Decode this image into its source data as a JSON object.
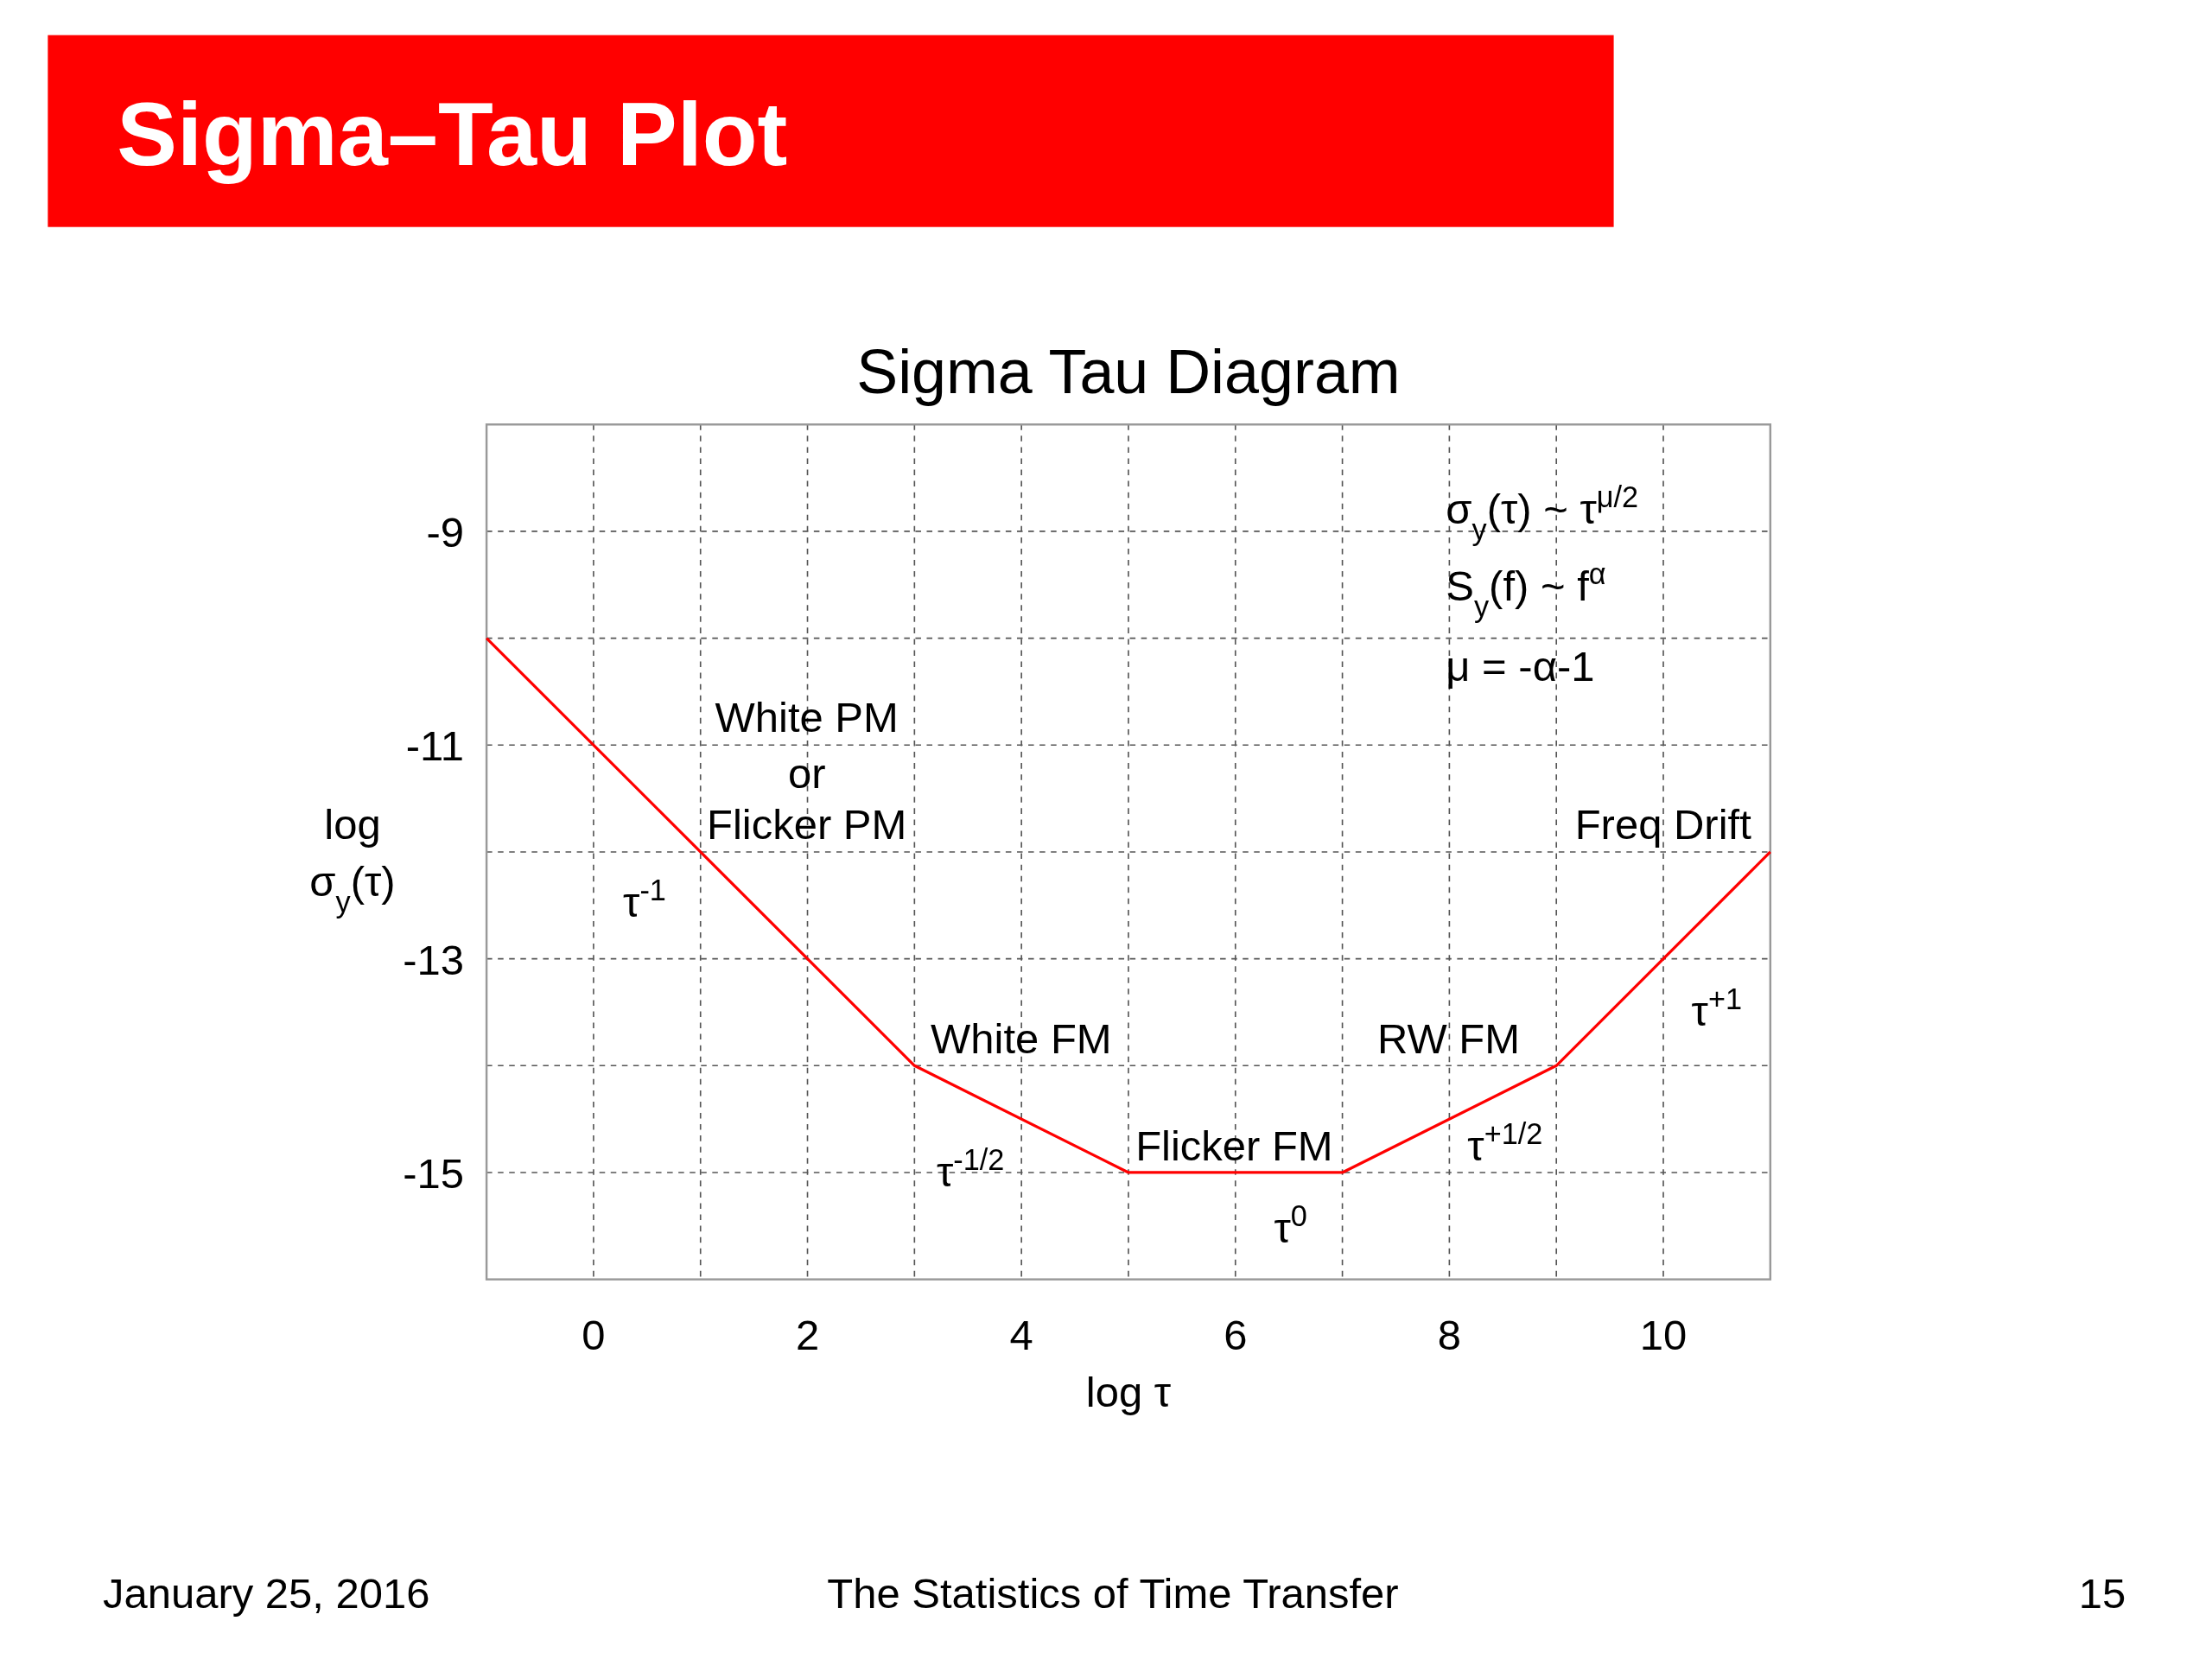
{
  "chart_data": {
    "type": "line",
    "title": "Sigma–Tau Plot",
    "subtitle": "Sigma Tau Diagram",
    "xlabel": "log τ",
    "ylabel": "log σ$_{y}$(τ)",
    "x": [
      -1,
      3,
      5,
      7,
      9,
      11
    ],
    "series": [
      {
        "color": "#ff0000",
        "values": [
          -10,
          -14,
          -15,
          -15,
          -14,
          -12
        ]
      }
    ],
    "xlim": [
      -1,
      11
    ],
    "ylim": [
      -16,
      -8
    ],
    "xticks": [
      0,
      {
        "value": 1,
        "label": null
      },
      2,
      {
        "value": 3,
        "label": null
      },
      4,
      {
        "value": 5,
        "label": null
      },
      6,
      {
        "value": 7,
        "label": null
      },
      8,
      {
        "value": 9,
        "label": null
      },
      10
    ],
    "yticks": [
      {
        "value": -10,
        "label": null
      },
      -9,
      -11,
      {
        "value": -12,
        "label": null
      },
      -13,
      {
        "value": -14,
        "label": null
      },
      -15
    ],
    "grid": true,
    "marker": "none",
    "line_style": "solid",
    "annotations": [
      "White PM",
      "or",
      "Flicker PM",
      "τ$^{-1}$",
      "White FM",
      "τ$^{-1/2}$",
      "Flicker FM",
      "τ$^{0}$",
      "RW FM",
      "τ$^{+1/2}$",
      "Freq Drift",
      "τ$^{+1}$",
      "σ$_{y}$(τ) ~ τ$^{μ/2}$",
      "S$_{y}$(f) ~ f$^{α}$",
      "μ = -α-1",
      "January 25, 2016",
      "The Statistics of Time Transfer",
      "15"
    ]
  }
}
